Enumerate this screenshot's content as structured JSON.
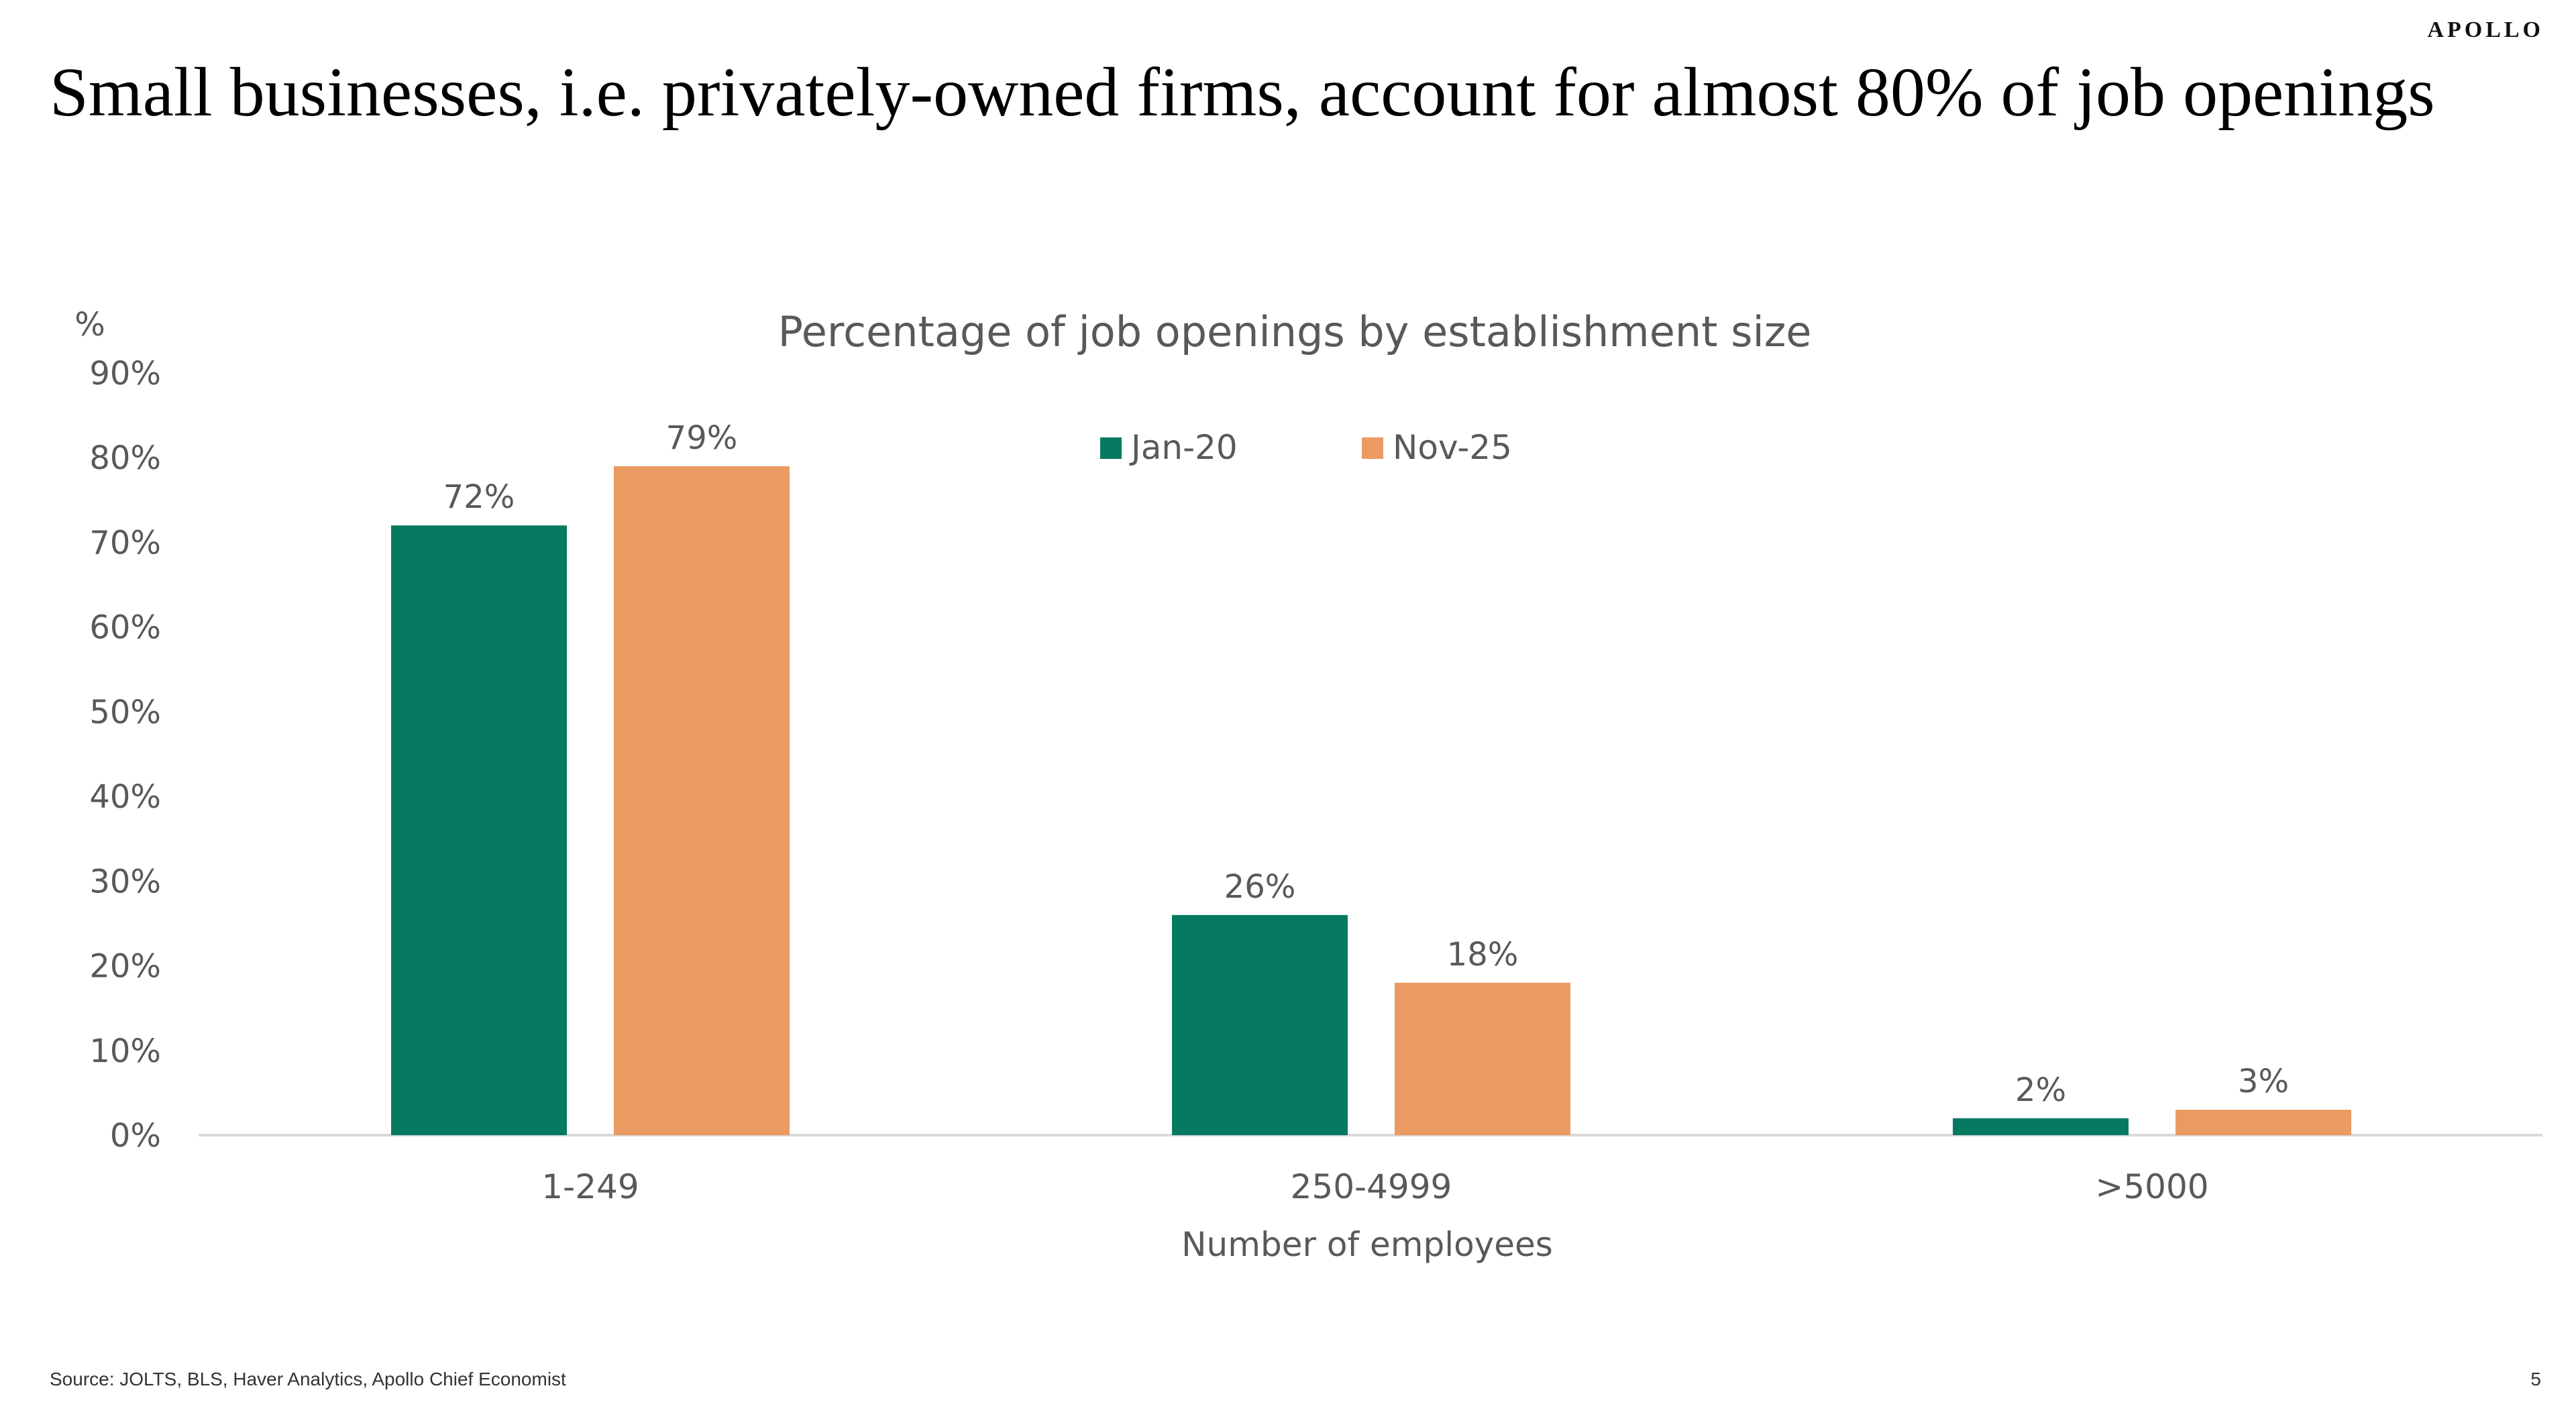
{
  "brand": "APOLLO",
  "slide_title": "Small businesses, i.e. privately-owned firms, account for almost 80% of job openings",
  "source": "Source: JOLTS, BLS, Haver Analytics, Apollo Chief Economist",
  "page_number": "5",
  "colors": {
    "jan20": "#057a61",
    "nov25": "#eb9a62",
    "axis_text": "#595959",
    "axis_line": "#d9d9d9"
  },
  "chart_data": {
    "type": "bar",
    "title": "Percentage of job openings by establishment size",
    "ylabel": "%",
    "xlabel": "Number of employees",
    "categories": [
      "1-249",
      "250-4999",
      ">5000"
    ],
    "series": [
      {
        "name": "Jan-20",
        "values": [
          72,
          26,
          2
        ],
        "labels": [
          "72%",
          "26%",
          "2%"
        ],
        "color": "#057a61"
      },
      {
        "name": "Nov-25",
        "values": [
          79,
          18,
          3
        ],
        "labels": [
          "79%",
          "18%",
          "3%"
        ],
        "color": "#eb9a62"
      }
    ],
    "ylim": [
      0,
      90
    ],
    "yticks": [
      0,
      10,
      20,
      30,
      40,
      50,
      60,
      70,
      80,
      90
    ],
    "ytick_labels": [
      "0%",
      "10%",
      "20%",
      "30%",
      "40%",
      "50%",
      "60%",
      "70%",
      "80%",
      "90%"
    ],
    "grid": false,
    "legend_position": "top-center"
  }
}
